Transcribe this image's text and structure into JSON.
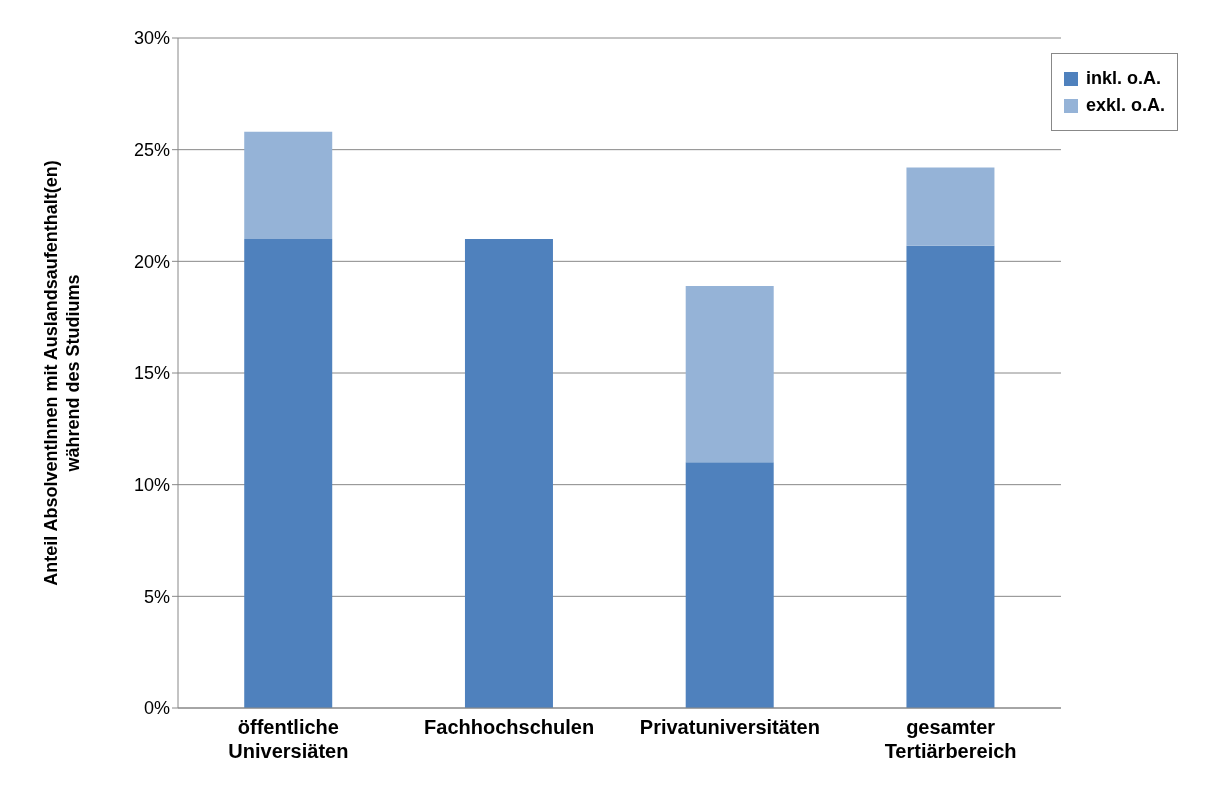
{
  "chart_data": {
    "type": "bar",
    "stacked": true,
    "ylabel": "Anteil AbsolventInnen mit Auslandsaufenthalt(en) während des Studiums",
    "categories": [
      "öffentliche Universiäten",
      "Fachhochschulen",
      "Privatuniversitäten",
      "gesamter Tertiärbereich"
    ],
    "series": [
      {
        "name": "inkl. o.A.",
        "color": "#4f81bd",
        "values": [
          21.0,
          21.0,
          11.0,
          20.7
        ]
      },
      {
        "name": "exkl. o.A.",
        "color": "#95b3d7",
        "values": [
          4.8,
          null,
          7.9,
          3.5
        ]
      }
    ],
    "ylim": [
      0,
      30
    ],
    "yticks": [
      {
        "value": 0,
        "label": "0%"
      },
      {
        "value": 5,
        "label": "5%"
      },
      {
        "value": 10,
        "label": "10%"
      },
      {
        "value": 15,
        "label": "15%"
      },
      {
        "value": 20,
        "label": "20%"
      },
      {
        "value": 25,
        "label": "25%"
      },
      {
        "value": 30,
        "label": "30%"
      }
    ],
    "grid": "y",
    "legend": "top right"
  }
}
